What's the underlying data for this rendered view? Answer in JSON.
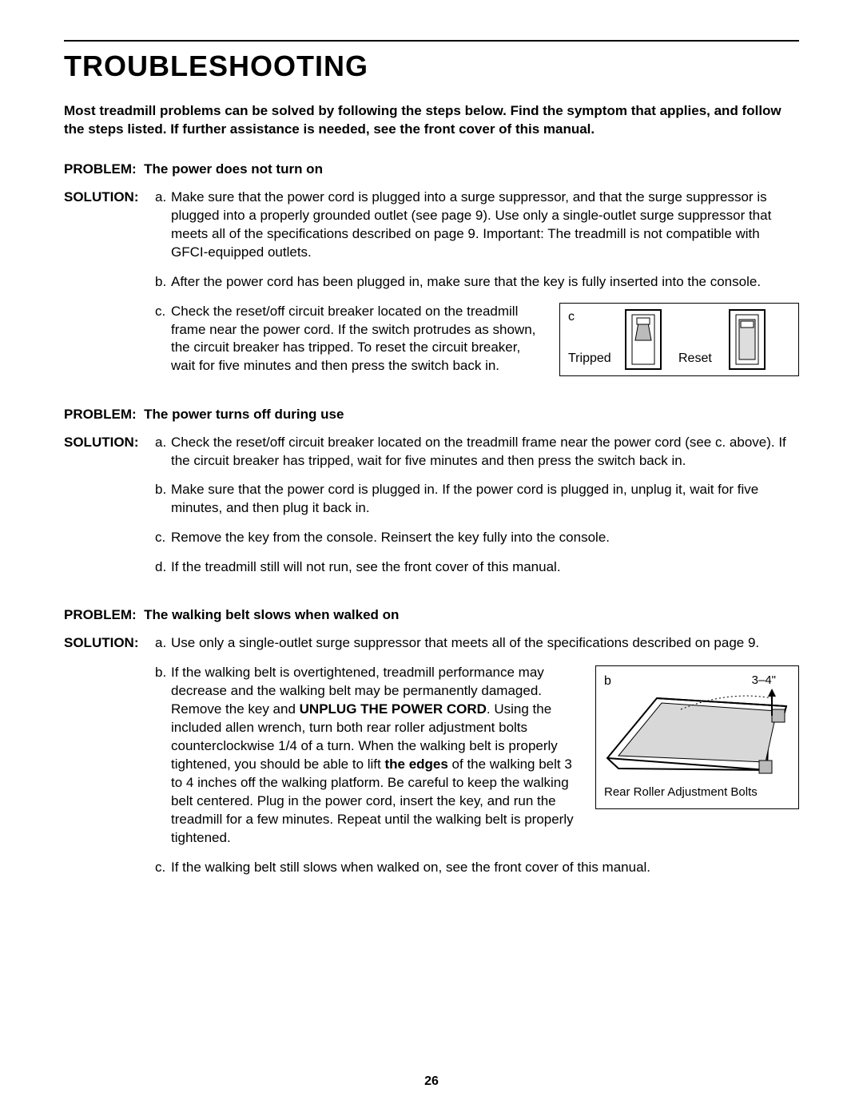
{
  "page": {
    "title": "TROUBLESHOOTING",
    "page_number": "26",
    "intro": "Most treadmill problems can be solved by following the steps below. Find the symptom that applies, and follow the steps listed. If further assistance is needed, see the front cover of this manual."
  },
  "labels": {
    "problem_prefix": "PROBLEM:",
    "solution_prefix": "SOLUTION:"
  },
  "problems": [
    {
      "title": "The power does not turn on",
      "items": [
        {
          "marker": "a.",
          "text": "Make sure that the power cord is plugged into a surge suppressor, and that the surge suppressor is plugged into a properly grounded outlet (see page 9). Use only a single-outlet surge suppressor that meets all of the specifications described on page 9. Important: The treadmill is not compatible with GFCI-equipped outlets."
        },
        {
          "marker": "b.",
          "text": "After the power cord has been plugged in, make sure that the key is fully inserted into the console."
        },
        {
          "marker": "c.",
          "text": "Check the reset/off circuit breaker located on the treadmill frame near the power cord. If the switch protrudes as shown, the circuit breaker has tripped. To reset the circuit breaker, wait for five minutes and then press the switch back in.",
          "figure": {
            "kind": "breaker",
            "label": "c",
            "tripped_label": "Tripped",
            "reset_label": "Reset"
          }
        }
      ]
    },
    {
      "title": "The power turns off during use",
      "items": [
        {
          "marker": "a.",
          "text": "Check the reset/off circuit breaker located on the treadmill frame near the power cord (see c. above). If the circuit breaker has tripped, wait for five minutes and then press the switch back in."
        },
        {
          "marker": "b.",
          "text": "Make sure that the power cord is plugged in. If the power cord is plugged in, unplug it, wait for five minutes, and then plug it back in."
        },
        {
          "marker": "c.",
          "text": "Remove the key from the console. Reinsert the key fully into the console."
        },
        {
          "marker": "d.",
          "text": "If the treadmill still will not run, see the front cover of this manual."
        }
      ]
    },
    {
      "title": "The walking belt slows when walked on",
      "items": [
        {
          "marker": "a.",
          "text": "Use only a single-outlet surge suppressor that meets all of the specifications described on page 9."
        },
        {
          "marker": "b.",
          "html": "If the walking belt is overtightened, treadmill performance may decrease and the walking belt may be permanently damaged. Remove the key and <b>UNPLUG THE POWER CORD</b>. Using the included allen wrench, turn both rear roller adjustment bolts counterclockwise 1/4 of a turn. When the walking belt is properly tightened, you should be able to lift <b>the edges</b> of the walking belt 3 to 4 inches off the walking platform. Be careful to keep the walking belt centered. Plug in the power cord, insert the key, and run the treadmill for a few minutes. Repeat until the walking belt is properly tightened.",
          "figure": {
            "kind": "roller",
            "label": "b",
            "range_label": "3–4\"",
            "caption": "Rear Roller Adjustment Bolts"
          }
        },
        {
          "marker": "c.",
          "text": "If the walking belt still slows when walked on, see the front cover of this manual."
        }
      ]
    }
  ],
  "style": {
    "text_color": "#000000",
    "background_color": "#ffffff",
    "rule_color": "#000000"
  }
}
